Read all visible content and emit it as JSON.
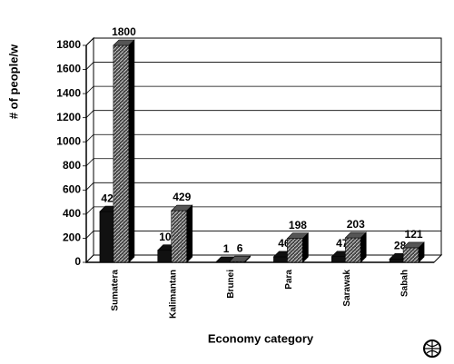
{
  "chart_data": {
    "type": "bar3d",
    "y_label": "# of people/w",
    "x_label": "Economy category",
    "categories": [
      "Sumatera",
      "Kalimantan",
      "Brunei",
      "Para",
      "Sarawak",
      "Sabah"
    ],
    "series": [
      {
        "color": "#111111",
        "values": [
          421,
          100,
          1,
          46,
          47,
          28
        ]
      },
      {
        "color": "#555555",
        "values": [
          1800,
          429,
          6,
          198,
          203,
          121
        ]
      }
    ],
    "ylim": [
      0,
      1800
    ],
    "yticks": [
      0,
      200,
      400,
      600,
      800,
      1000,
      1200,
      1400,
      1600,
      1800
    ],
    "grid": true
  }
}
